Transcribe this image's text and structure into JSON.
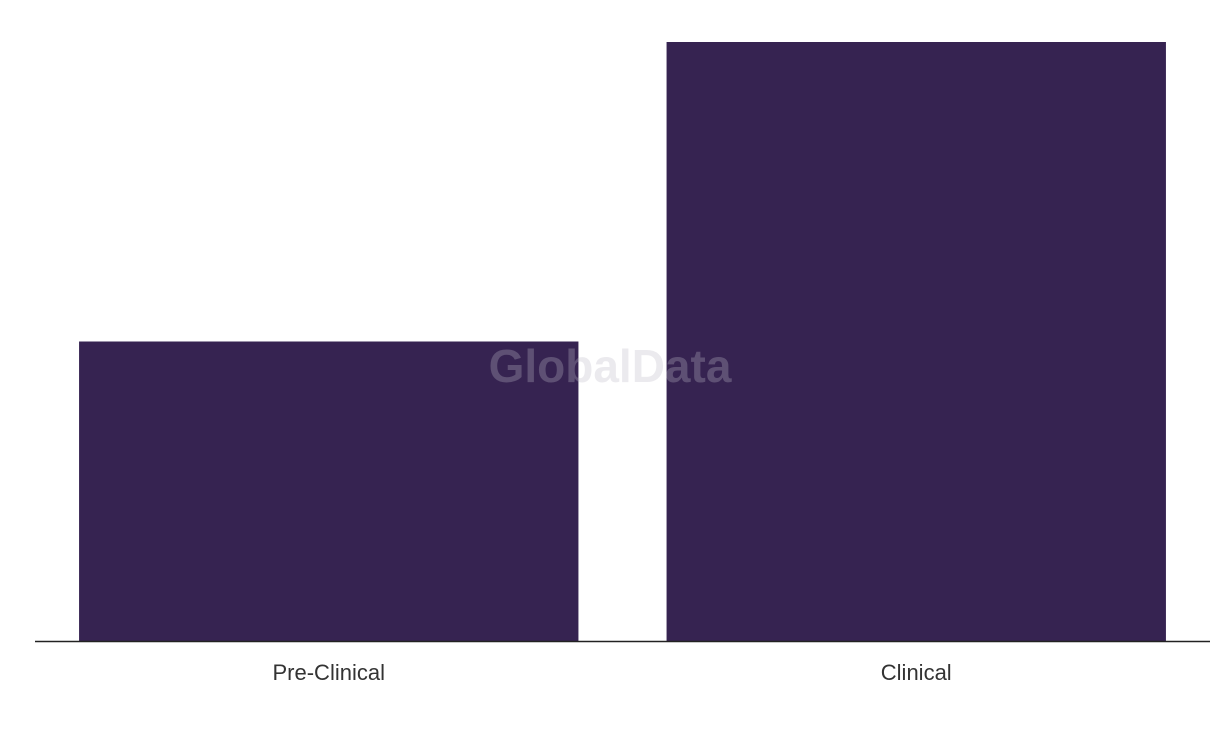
{
  "chart_data": {
    "type": "bar",
    "watermark": "GlobalData",
    "categories": [
      "Pre-Clinical",
      "Clinical"
    ],
    "values": [
      1,
      2
    ],
    "color": "#362351",
    "ylim": [
      0,
      2
    ]
  }
}
